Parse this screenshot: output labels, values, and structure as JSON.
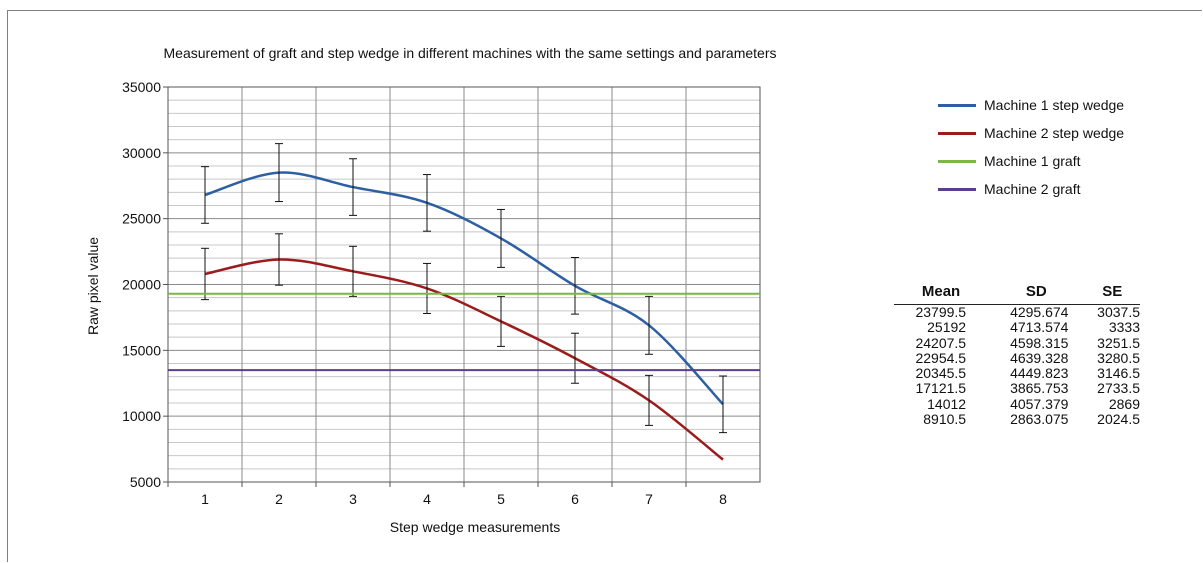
{
  "chart_data": {
    "type": "line",
    "title": "Measurement of graft and step wedge in different machines with the same settings and parameters",
    "xlabel": "Step wedge measurements",
    "ylabel": "Raw pixel value",
    "x": [
      1,
      2,
      3,
      4,
      5,
      6,
      7,
      8
    ],
    "ylim": [
      5000,
      35000
    ],
    "yticks": [
      "35000",
      "30000",
      "25000",
      "20000",
      "15000",
      "10000",
      "5000"
    ],
    "xticks": [
      "1",
      "2",
      "3",
      "4",
      "5",
      "6",
      "7",
      "8"
    ],
    "grid": true,
    "legend_position": "right",
    "series": [
      {
        "name": "Machine 1 step wedge",
        "color": "#2e5fa3",
        "values": [
          26800,
          28500,
          27400,
          26200,
          23500,
          19900,
          16900,
          10900
        ],
        "error": [
          2150,
          2200,
          2150,
          2150,
          2200,
          2150,
          2200,
          2150
        ]
      },
      {
        "name": "Machine 2 step wedge",
        "color": "#9b1c1c",
        "values": [
          20800,
          21900,
          21000,
          19700,
          17200,
          14400,
          11200,
          6700
        ],
        "error": [
          1950,
          1950,
          1900,
          1900,
          1900,
          1900,
          1900,
          0
        ]
      },
      {
        "name": "Machine 1 graft",
        "color": "#7ab648",
        "values": [
          19300,
          19300,
          19300,
          19300,
          19300,
          19300,
          19300,
          19300
        ]
      },
      {
        "name": "Machine 2 graft",
        "color": "#5b3e8f",
        "values": [
          13500,
          13500,
          13500,
          13500,
          13500,
          13500,
          13500,
          13500
        ]
      }
    ],
    "table": {
      "headers": [
        "Mean",
        "SD",
        "SE"
      ],
      "rows": [
        [
          "23799.5",
          "4295.674",
          "3037.5"
        ],
        [
          "25192",
          "4713.574",
          "3333"
        ],
        [
          "24207.5",
          "4598.315",
          "3251.5"
        ],
        [
          "22954.5",
          "4639.328",
          "3280.5"
        ],
        [
          "20345.5",
          "4449.823",
          "3146.5"
        ],
        [
          "17121.5",
          "3865.753",
          "2733.5"
        ],
        [
          "14012",
          "4057.379",
          "2869"
        ],
        [
          "8910.5",
          "2863.075",
          "2024.5"
        ]
      ]
    }
  }
}
